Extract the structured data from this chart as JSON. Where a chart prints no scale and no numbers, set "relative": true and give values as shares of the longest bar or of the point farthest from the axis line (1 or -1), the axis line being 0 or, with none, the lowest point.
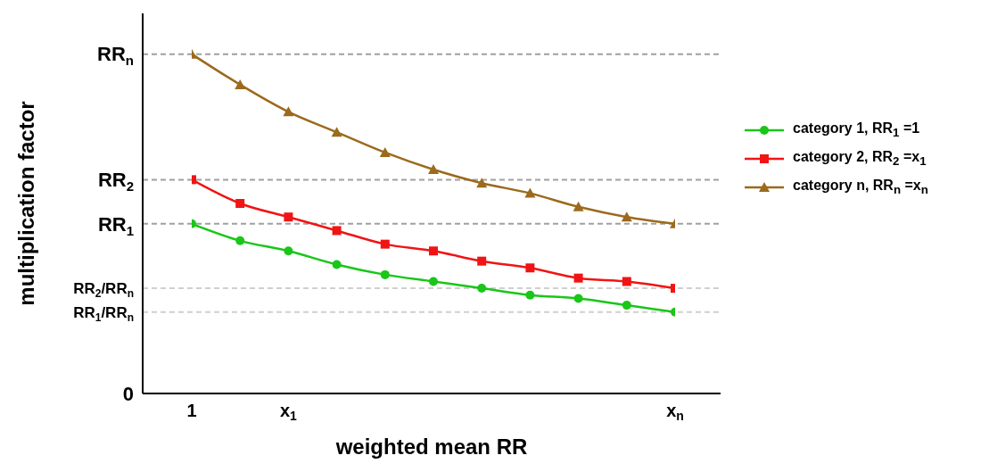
{
  "chart_data": {
    "type": "line",
    "xlabel": "weighted mean RR",
    "ylabel": "multiplication factor",
    "relative": true,
    "legend": "right",
    "categories": [
      "1",
      null,
      "x$_{1}$",
      null,
      null,
      null,
      null,
      null,
      null,
      null,
      "x$_{n}$"
    ],
    "series": [
      {
        "name": "category 1, RR$_{1}$ =1",
        "color": "#19c619",
        "marker": "circle",
        "values": [
          0.5,
          0.45,
          0.42,
          0.38,
          0.35,
          0.33,
          0.31,
          0.29,
          0.28,
          0.26,
          0.24
        ]
      },
      {
        "name": "category 2, RR$_{2}$ =x$_{1}$",
        "color": "#f01414",
        "marker": "square",
        "values": [
          0.63,
          0.56,
          0.52,
          0.48,
          0.44,
          0.42,
          0.39,
          0.37,
          0.34,
          0.33,
          0.31
        ]
      },
      {
        "name": "category n, RR$_{n}$ =x$_{n}$",
        "color": "#9b6a1c",
        "marker": "triangle",
        "values": [
          1,
          0.91,
          0.83,
          0.77,
          0.71,
          0.66,
          0.62,
          0.59,
          0.55,
          0.52,
          0.5
        ]
      }
    ],
    "ref_lines": [
      {
        "axis": "y",
        "value": 1,
        "label": "RR$_{n}$",
        "color": "#a0a0a0",
        "line_style": "dashed"
      },
      {
        "axis": "y",
        "value": 0.63,
        "label": "RR$_{2}$",
        "color": "#a0a0a0",
        "line_style": "dashed"
      },
      {
        "axis": "y",
        "value": 0.5,
        "label": "RR$_{1}$",
        "color": "#a0a0a0",
        "line_style": "dashed"
      },
      {
        "axis": "y",
        "value": 0.31,
        "label": "RR$_{2}$/RR$_{n}$",
        "color": "#d0d0d0",
        "line_style": "dashed"
      },
      {
        "axis": "y",
        "value": 0.24,
        "label": "RR$_{1}$/RR$_{n}$",
        "color": "#d0d0d0",
        "line_style": "dashed"
      }
    ],
    "annotations": [
      "0"
    ]
  }
}
